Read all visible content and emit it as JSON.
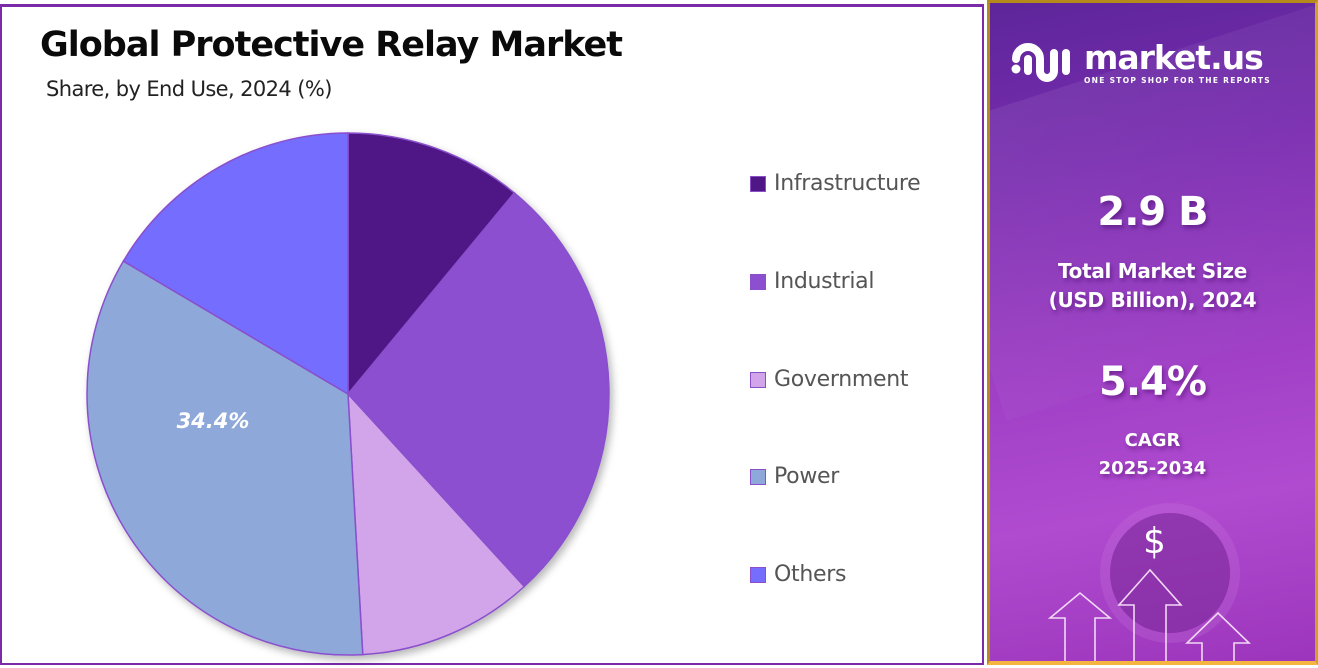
{
  "header": {
    "title": "Global Protective Relay Market",
    "subtitle": "Share, by End Use, 2024 (%)"
  },
  "chart_data": {
    "type": "pie",
    "title": "Global Protective Relay Market",
    "subtitle": "Share, by End Use, 2024 (%)",
    "categories": [
      "Infrastructure",
      "Industrial",
      "Government",
      "Power",
      "Others"
    ],
    "values": [
      11.0,
      27.2,
      10.9,
      34.4,
      16.5
    ],
    "colors": [
      "#4f1786",
      "#8b4fcf",
      "#d2a5ea",
      "#8ea8da",
      "#746dfd"
    ],
    "data_labels": [
      {
        "category": "Power",
        "text": "34.4%"
      }
    ],
    "start_angle_deg": 0,
    "direction": "clockwise",
    "legend_position": "right"
  },
  "legend": {
    "items": [
      {
        "label": "Infrastructure",
        "color": "#4f1786"
      },
      {
        "label": "Industrial",
        "color": "#8b4fcf"
      },
      {
        "label": "Government",
        "color": "#d2a5ea"
      },
      {
        "label": "Power",
        "color": "#8ea8da"
      },
      {
        "label": "Others",
        "color": "#746dfd"
      }
    ]
  },
  "side_panel": {
    "brand": "market.us",
    "tagline": "ONE STOP SHOP FOR THE REPORTS",
    "market_size_value": "2.9 B",
    "market_size_label_line1": "Total Market Size",
    "market_size_label_line2": "(USD Billion), 2024",
    "cagr_value": "5.4%",
    "cagr_label_line1": "CAGR",
    "cagr_label_line2": "2025-2034",
    "dollar_symbol": "$"
  },
  "colors": {
    "panel_border": "#7b2aa8",
    "side_border": "#f6b540",
    "slice_stroke": "#8a50cc"
  }
}
